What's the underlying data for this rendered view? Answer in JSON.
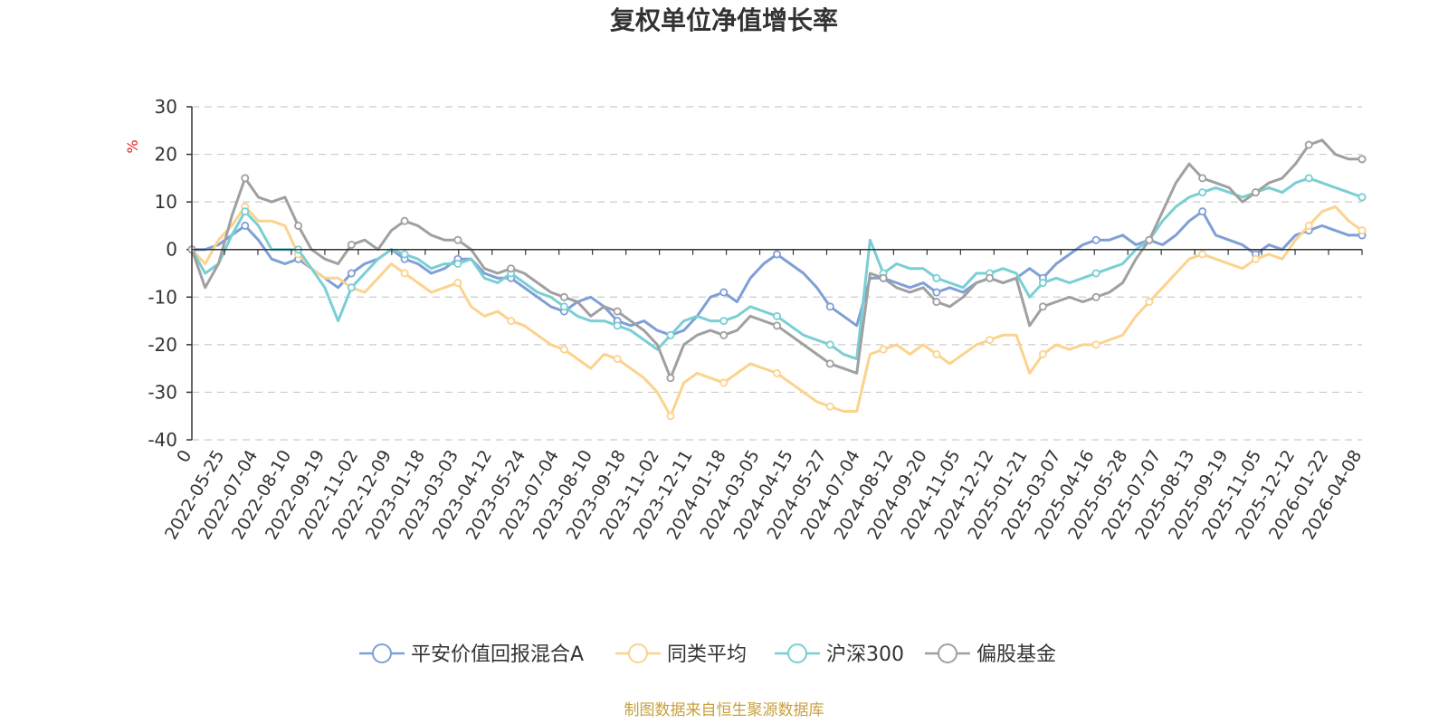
{
  "chart_data": {
    "type": "line",
    "title": "复权单位净值增长率",
    "ylabel": "%",
    "ylim": [
      -40,
      30
    ],
    "yticks": [
      30,
      20,
      10,
      0,
      -10,
      -20,
      -30,
      -40
    ],
    "x_start_label": "0",
    "x_tick_labels": [
      "2022-05-25",
      "2022-07-04",
      "2022-08-10",
      "2022-09-19",
      "2022-11-02",
      "2022-12-09",
      "2023-01-18",
      "2023-03-03",
      "2023-04-12",
      "2023-05-24",
      "2023-07-04",
      "2023-08-10",
      "2023-09-18",
      "2023-11-02",
      "2023-12-11",
      "2024-01-18",
      "2024-03-05",
      "2024-04-15",
      "2024-05-27",
      "2024-07-04",
      "2024-08-12",
      "2024-09-20",
      "2024-11-05",
      "2024-12-12",
      "2025-01-21",
      "2025-03-07",
      "2025-04-16",
      "2025-05-28",
      "2025-07-07",
      "2025-08-13",
      "2025-09-19",
      "2025-11-05",
      "2025-12-12",
      "2026-01-22",
      "2026-04-08"
    ],
    "series": [
      {
        "name": "平安价值回报混合A",
        "color": "#7f9fd6",
        "values": [
          0,
          0,
          1,
          3,
          5,
          2,
          -2,
          -3,
          -2,
          -4,
          -6,
          -8,
          -5,
          -3,
          -2,
          0,
          -2,
          -3,
          -5,
          -4,
          -2,
          -2,
          -5,
          -6,
          -6,
          -8,
          -10,
          -12,
          -13,
          -11,
          -10,
          -12,
          -15,
          -16,
          -15,
          -17,
          -18,
          -17,
          -14,
          -10,
          -9,
          -11,
          -6,
          -3,
          -1,
          -3,
          -5,
          -8,
          -12,
          -14,
          -16,
          -6,
          -6,
          -7,
          -8,
          -7,
          -9,
          -8,
          -9,
          -7,
          -6,
          -7,
          -6,
          -4,
          -6,
          -3,
          -1,
          1,
          2,
          2,
          3,
          1,
          2,
          1,
          3,
          6,
          8,
          3,
          2,
          1,
          -1,
          1,
          0,
          3,
          4,
          5,
          4,
          3,
          3
        ]
      },
      {
        "name": "同类平均",
        "color": "#fcd38d",
        "values": [
          0,
          -3,
          2,
          5,
          9,
          6,
          6,
          5,
          -1,
          -4,
          -6,
          -6,
          -8,
          -9,
          -6,
          -3,
          -5,
          -7,
          -9,
          -8,
          -7,
          -12,
          -14,
          -13,
          -15,
          -16,
          -18,
          -20,
          -21,
          -23,
          -25,
          -22,
          -23,
          -25,
          -27,
          -30,
          -35,
          -28,
          -26,
          -27,
          -28,
          -26,
          -24,
          -25,
          -26,
          -28,
          -30,
          -32,
          -33,
          -34,
          -34,
          -22,
          -21,
          -20,
          -22,
          -20,
          -22,
          -24,
          -22,
          -20,
          -19,
          -18,
          -18,
          -26,
          -22,
          -20,
          -21,
          -20,
          -20,
          -19,
          -18,
          -14,
          -11,
          -8,
          -5,
          -2,
          -1,
          -2,
          -3,
          -4,
          -2,
          -1,
          -2,
          2,
          5,
          8,
          9,
          6,
          4
        ]
      },
      {
        "name": "沪深300",
        "color": "#79cfd4",
        "values": [
          0,
          -5,
          -3,
          3,
          8,
          5,
          0,
          0,
          0,
          -4,
          -8,
          -15,
          -8,
          -5,
          -2,
          0,
          -1,
          -2,
          -4,
          -3,
          -3,
          -2,
          -6,
          -7,
          -5,
          -7,
          -9,
          -10,
          -12,
          -14,
          -15,
          -15,
          -16,
          -17,
          -19,
          -21,
          -18,
          -15,
          -14,
          -15,
          -15,
          -14,
          -12,
          -13,
          -14,
          -16,
          -18,
          -19,
          -20,
          -22,
          -23,
          2,
          -5,
          -3,
          -4,
          -4,
          -6,
          -7,
          -8,
          -5,
          -5,
          -4,
          -5,
          -10,
          -7,
          -6,
          -7,
          -6,
          -5,
          -4,
          -3,
          0,
          2,
          6,
          9,
          11,
          12,
          13,
          12,
          11,
          12,
          13,
          12,
          14,
          15,
          14,
          13,
          12,
          11
        ]
      },
      {
        "name": "偏股基金",
        "color": "#a0a0a0",
        "values": [
          0,
          -8,
          -3,
          7,
          15,
          11,
          10,
          11,
          5,
          0,
          -2,
          -3,
          1,
          2,
          0,
          4,
          6,
          5,
          3,
          2,
          2,
          0,
          -4,
          -5,
          -4,
          -5,
          -7,
          -9,
          -10,
          -11,
          -14,
          -12,
          -13,
          -15,
          -17,
          -20,
          -27,
          -20,
          -18,
          -17,
          -18,
          -17,
          -14,
          -15,
          -16,
          -18,
          -20,
          -22,
          -24,
          -25,
          -26,
          -5,
          -6,
          -8,
          -9,
          -8,
          -11,
          -12,
          -10,
          -7,
          -6,
          -7,
          -6,
          -16,
          -12,
          -11,
          -10,
          -11,
          -10,
          -9,
          -7,
          -2,
          2,
          8,
          14,
          18,
          15,
          14,
          13,
          10,
          12,
          14,
          15,
          18,
          22,
          23,
          20,
          19,
          19
        ]
      }
    ]
  },
  "source_text": "制图数据来自恒生聚源数据库"
}
